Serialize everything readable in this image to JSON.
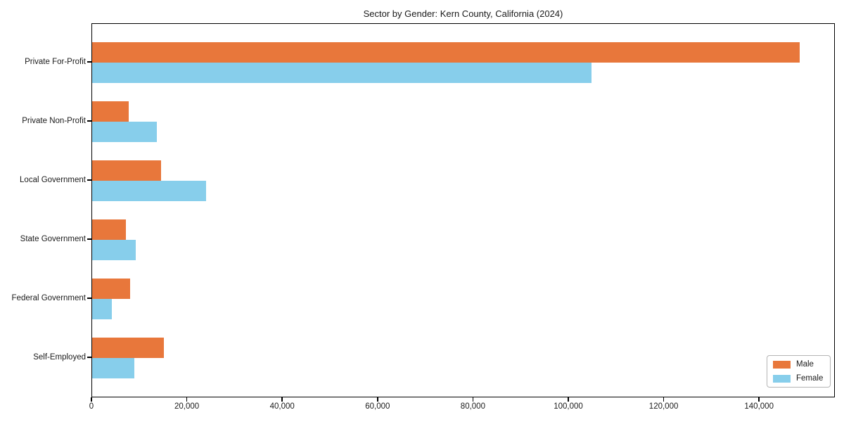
{
  "chart_data": {
    "type": "bar",
    "orientation": "horizontal",
    "title": "Sector by Gender: Kern County, California (2024)",
    "xlabel": "",
    "ylabel": "",
    "categories": [
      "Private For-Profit",
      "Private Non-Profit",
      "Local Government",
      "State Government",
      "Federal Government",
      "Self-Employed"
    ],
    "series": [
      {
        "name": "Male",
        "color": "#E8773B",
        "values": [
          148400,
          7600,
          14500,
          7100,
          7900,
          15100
        ]
      },
      {
        "name": "Female",
        "color": "#87CEEB",
        "values": [
          104700,
          13500,
          23900,
          9100,
          4200,
          8900
        ]
      }
    ],
    "xlim": [
      0,
      155900
    ],
    "xticks": [
      0,
      20000,
      40000,
      60000,
      80000,
      100000,
      120000,
      140000
    ],
    "xtick_labels": [
      "0",
      "20,000",
      "40,000",
      "60,000",
      "80,000",
      "100,000",
      "120,000",
      "140,000"
    ],
    "grid": false,
    "legend_position": "lower right"
  }
}
